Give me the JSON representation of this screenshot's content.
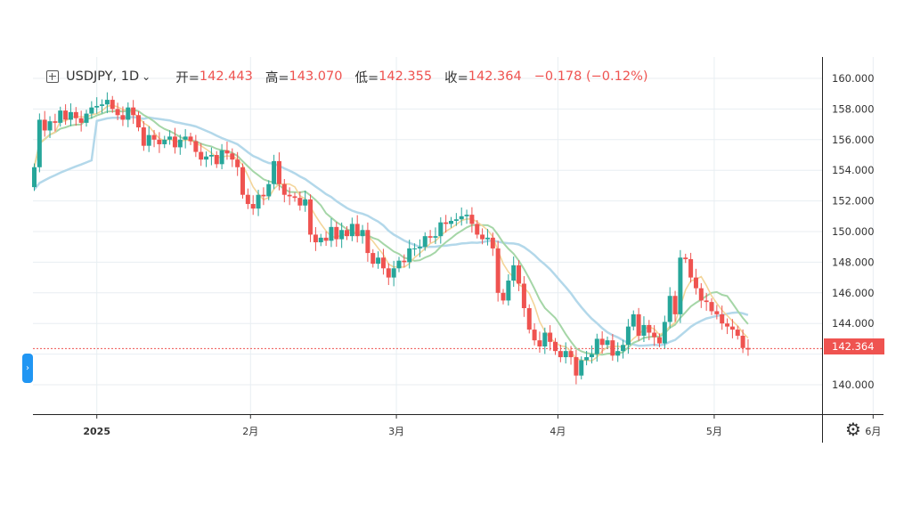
{
  "header": {
    "symbol": "USDJPY, 1D",
    "open_label": "开=",
    "open": "142.443",
    "high_label": "高=",
    "high": "143.070",
    "low_label": "低=",
    "low": "142.355",
    "close_label": "收=",
    "close": "142.364",
    "change": "−0.178 (−0.12%)"
  },
  "colors": {
    "up": "#26a69a",
    "down": "#ef5350",
    "ma_fast": "#f3d59a",
    "ma_mid": "#a5d6a7",
    "ma_slow": "#b3d8ea",
    "grid": "#e8eef2"
  },
  "icons": {
    "add": "plus-square-icon",
    "toggle": "chevron-right-icon",
    "menu": "chevron-down-icon",
    "settings": "gear-icon"
  },
  "chart_data": {
    "type": "candlestick",
    "symbol": "USDJPY",
    "interval": "1D",
    "ylim": [
      138,
      161
    ],
    "y_ticks": [
      "160.000",
      "158.000",
      "156.000",
      "154.000",
      "152.000",
      "150.000",
      "148.000",
      "146.000",
      "144.000",
      "142.000",
      "140.000"
    ],
    "x_axis": [
      {
        "label": "2025",
        "t": 12
      },
      {
        "label": "2月",
        "t": 41.5
      },
      {
        "label": "3月",
        "t": 69.5
      },
      {
        "label": "4月",
        "t": 100.5
      },
      {
        "label": "5月",
        "t": 130.5
      },
      {
        "label": "6月",
        "t": 161
      }
    ],
    "last_price_label": "142.364",
    "closes": [
      154.2,
      157.3,
      156.6,
      157.2,
      157.1,
      157.9,
      157.3,
      157.8,
      157.4,
      157.1,
      157.7,
      158.1,
      158.2,
      158.3,
      158.6,
      158.0,
      157.6,
      157.3,
      158.1,
      157.6,
      156.8,
      155.6,
      156.3,
      156.0,
      155.7,
      156.0,
      156.2,
      155.5,
      156.0,
      156.2,
      155.9,
      155.2,
      154.7,
      154.9,
      155.0,
      154.4,
      155.3,
      155.1,
      154.7,
      154.2,
      152.4,
      151.8,
      151.5,
      152.4,
      152.3,
      153.1,
      154.6,
      153.1,
      152.4,
      152.3,
      152.2,
      151.7,
      152.1,
      149.8,
      149.3,
      149.6,
      149.4,
      150.3,
      149.5,
      150.1,
      149.7,
      150.5,
      149.7,
      150.1,
      148.6,
      147.9,
      148.3,
      147.6,
      147.0,
      147.6,
      148.1,
      148.0,
      148.9,
      148.9,
      149.0,
      149.7,
      149.6,
      149.7,
      150.6,
      150.5,
      150.7,
      150.8,
      151.0,
      151.1,
      150.5,
      149.8,
      149.5,
      149.6,
      148.9,
      146.0,
      145.5,
      146.8,
      147.8,
      146.6,
      145.0,
      143.6,
      142.9,
      142.5,
      143.4,
      142.8,
      142.2,
      141.8,
      142.2,
      141.8,
      140.6,
      141.6,
      141.8,
      142.0,
      143.0,
      142.6,
      142.9,
      141.9,
      142.2,
      142.6,
      143.8,
      144.6,
      143.2,
      143.9,
      143.4,
      143.1,
      142.7,
      144.1,
      145.8,
      144.6,
      148.3,
      148.2,
      147.0,
      146.3,
      145.5,
      145.4,
      144.8,
      144.6,
      144.0,
      143.8,
      143.6,
      143.2,
      142.4,
      142.3
    ]
  }
}
